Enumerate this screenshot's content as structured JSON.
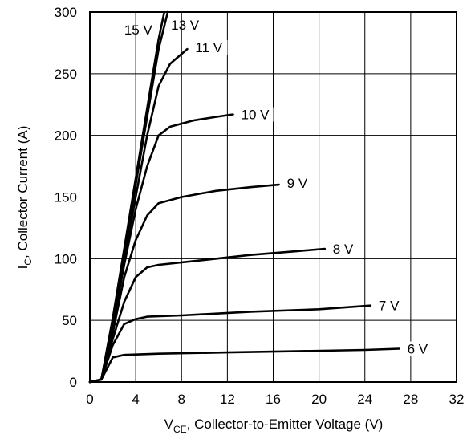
{
  "chart_data": {
    "type": "line",
    "xlabel": {
      "main": "V",
      "sub": "CE",
      "rest": ", Collector-to-Emitter Voltage (V)"
    },
    "ylabel": {
      "main": "I",
      "sub": "C",
      "rest": ", Collector Current (A)"
    },
    "xlim": [
      0,
      32
    ],
    "ylim": [
      0,
      300
    ],
    "xticks": [
      0,
      4,
      8,
      12,
      16,
      20,
      24,
      28,
      32
    ],
    "yticks": [
      0,
      50,
      100,
      150,
      200,
      250,
      300
    ],
    "grid": true,
    "series": [
      {
        "name": "6 V",
        "points": [
          [
            0,
            0
          ],
          [
            1,
            2
          ],
          [
            2,
            20
          ],
          [
            3,
            22
          ],
          [
            6,
            23
          ],
          [
            12,
            24
          ],
          [
            18,
            25
          ],
          [
            24,
            26
          ],
          [
            27,
            27
          ]
        ]
      },
      {
        "name": "7 V",
        "points": [
          [
            0,
            0
          ],
          [
            1,
            2
          ],
          [
            2,
            30
          ],
          [
            3,
            47
          ],
          [
            4,
            51
          ],
          [
            5,
            53
          ],
          [
            8,
            54
          ],
          [
            14,
            57
          ],
          [
            20,
            59
          ],
          [
            24.5,
            62
          ]
        ]
      },
      {
        "name": "8 V",
        "points": [
          [
            0,
            0
          ],
          [
            1,
            2
          ],
          [
            2,
            35
          ],
          [
            3,
            65
          ],
          [
            4,
            85
          ],
          [
            5,
            93
          ],
          [
            6,
            95
          ],
          [
            10,
            99
          ],
          [
            14,
            103
          ],
          [
            18,
            106
          ],
          [
            20.5,
            108
          ]
        ]
      },
      {
        "name": "9 V",
        "points": [
          [
            0,
            0
          ],
          [
            1,
            2
          ],
          [
            2,
            40
          ],
          [
            3,
            85
          ],
          [
            4,
            115
          ],
          [
            5,
            135
          ],
          [
            6,
            145
          ],
          [
            8,
            150
          ],
          [
            11,
            155
          ],
          [
            14,
            158
          ],
          [
            16.5,
            160
          ]
        ]
      },
      {
        "name": "10 V",
        "points": [
          [
            0,
            0
          ],
          [
            1,
            2
          ],
          [
            2,
            45
          ],
          [
            3,
            95
          ],
          [
            4,
            140
          ],
          [
            5,
            175
          ],
          [
            6,
            200
          ],
          [
            7,
            207
          ],
          [
            9,
            212
          ],
          [
            11,
            215
          ],
          [
            12.5,
            217
          ]
        ]
      },
      {
        "name": "11 V",
        "points": [
          [
            0,
            0
          ],
          [
            1,
            2
          ],
          [
            2,
            48
          ],
          [
            3,
            100
          ],
          [
            4,
            150
          ],
          [
            5,
            200
          ],
          [
            6,
            240
          ],
          [
            7,
            258
          ],
          [
            8.5,
            270
          ]
        ]
      },
      {
        "name": "13 V",
        "points": [
          [
            0,
            0
          ],
          [
            1,
            2
          ],
          [
            2,
            50
          ],
          [
            3,
            105
          ],
          [
            4,
            160
          ],
          [
            5,
            215
          ],
          [
            6,
            270
          ],
          [
            6.8,
            300
          ]
        ]
      },
      {
        "name": "15 V",
        "points": [
          [
            0,
            0
          ],
          [
            1,
            2
          ],
          [
            2,
            52
          ],
          [
            3,
            108
          ],
          [
            4,
            165
          ],
          [
            5,
            222
          ],
          [
            6,
            278
          ],
          [
            6.5,
            300
          ]
        ]
      }
    ]
  }
}
